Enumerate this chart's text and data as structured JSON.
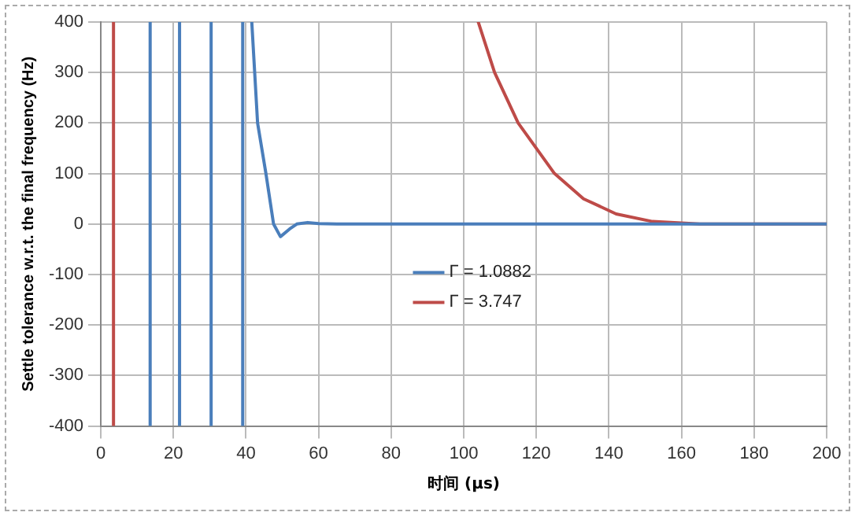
{
  "chart_data": {
    "type": "line",
    "xlabel": "时间 (μs)",
    "ylabel": "Settle tolerance w.r.t. the final frequency (Hz)",
    "xlim": [
      0,
      200
    ],
    "xticks": [
      0,
      20,
      40,
      60,
      80,
      100,
      120,
      140,
      160,
      180,
      200
    ],
    "ylim": [
      -400,
      400
    ],
    "yticks": [
      -400,
      -300,
      -200,
      -100,
      0,
      100,
      200,
      300,
      400
    ],
    "grid": true,
    "legend": "center",
    "marker": "none",
    "line_style": "solid",
    "series": [
      {
        "name": "Γ = 1.0882",
        "color": "#4a7ebb",
        "x": [
          13.6,
          13.6,
          17,
          21.7,
          21.7,
          26,
          30.4,
          30.4,
          35,
          39.1,
          39.1,
          40.5,
          41.6,
          43.2,
          45.5,
          47.6,
          49.5,
          52,
          54,
          57,
          60,
          65,
          80,
          100,
          120,
          140,
          160,
          180,
          200
        ],
        "values": [
          400,
          -400,
          null,
          -400,
          400,
          null,
          400,
          -400,
          null,
          -400,
          400,
          null,
          400,
          200,
          100,
          0,
          -25,
          -10,
          0,
          3,
          1,
          0,
          0,
          0,
          0,
          0,
          0,
          0,
          0
        ]
      },
      {
        "name": "Γ = 3.747",
        "color": "#be4b48",
        "x": [
          3.5,
          3.5,
          50,
          104,
          108.5,
          115,
          125,
          133,
          142,
          152,
          165,
          180,
          200
        ],
        "values": [
          -400,
          400,
          null,
          400,
          300,
          200,
          100,
          50,
          20,
          5,
          0,
          0,
          0
        ]
      }
    ]
  }
}
